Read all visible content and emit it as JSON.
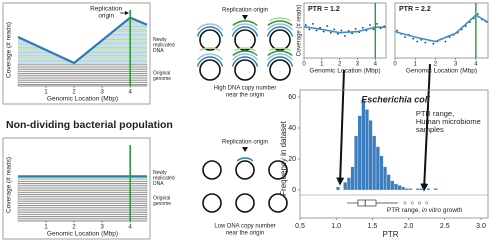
{
  "section_title": "Non-dividing bacterial population",
  "diagrams": [
    {
      "label": "Replication origin",
      "caption": [
        "High DNA copy number",
        "near the origin"
      ]
    },
    {
      "label": "Replication origin",
      "caption": [
        "Low DNA copy number",
        "near the origin"
      ]
    }
  ],
  "chart_data": [
    {
      "type": "line",
      "ylabel": "Coverage (# reads)",
      "xlabel": "Genomic Location (Mbp)",
      "xlim": [
        0,
        4.6
      ],
      "xticks": [
        1,
        2,
        3,
        4
      ],
      "ylim": [
        0,
        100
      ],
      "x": [
        0,
        2,
        4,
        4.6
      ],
      "series": [
        {
          "color": "#2a7ab8",
          "values": [
            68,
            32,
            95,
            85
          ]
        },
        {
          "color": "#9a9a9a",
          "values": [
            30,
            30,
            30,
            30
          ]
        }
      ],
      "origin_x": 4,
      "origin_color": "#2e9a3a",
      "origin_label": [
        "Replication",
        "origin"
      ],
      "new_label": [
        "Newly",
        "replicated",
        "DNA"
      ],
      "orig_label": [
        "Original",
        "genome"
      ]
    },
    {
      "type": "line",
      "ylabel": "Coverage (# reads)",
      "xlabel": "Genomic Location (Mbp)",
      "xlim": [
        0,
        4.6
      ],
      "xticks": [
        1,
        2,
        3,
        4
      ],
      "ylim": [
        0,
        100
      ],
      "x": [
        0,
        2,
        4,
        4.6
      ],
      "series": [
        {
          "color": "#2a7ab8",
          "values": [
            62,
            62,
            62,
            62
          ]
        },
        {
          "color": "#9a9a9a",
          "values": [
            58,
            58,
            58,
            58
          ]
        }
      ],
      "origin_x": 4,
      "origin_color": "#2e9a3a",
      "new_label": [
        "Newly",
        "replicated",
        "DNA"
      ],
      "orig_label": [
        "Original",
        "genome"
      ]
    },
    {
      "type": "scatter",
      "annotation": "PTR = 1.2",
      "ylabel": "Coverage (# reads)",
      "xlabel": "Genomic Location (Mbp)",
      "xlim": [
        0,
        4.6
      ],
      "xticks": [
        0,
        1,
        2,
        3,
        4
      ],
      "ylim": [
        0,
        100
      ],
      "origin_x": 4,
      "origin_color": "#2e9a3a",
      "color": "#1f3b63",
      "trend_color": "#3d8fd0",
      "x": [
        0.1,
        0.3,
        0.5,
        0.7,
        0.9,
        1.1,
        1.3,
        1.5,
        1.7,
        1.9,
        2.1,
        2.3,
        2.5,
        2.7,
        2.9,
        3.1,
        3.3,
        3.5,
        3.7,
        3.9,
        4.1,
        4.3,
        4.5
      ],
      "values": [
        60,
        52,
        62,
        50,
        55,
        48,
        58,
        46,
        52,
        44,
        50,
        40,
        49,
        45,
        53,
        47,
        55,
        50,
        60,
        52,
        62,
        54,
        58
      ],
      "trend": {
        "x": [
          0,
          1,
          2,
          3,
          4,
          4.6
        ],
        "values": [
          57,
          52,
          46,
          48,
          56,
          56
        ]
      }
    },
    {
      "type": "scatter",
      "annotation": "PTR = 2.2",
      "xlabel": "Genomic Location (Mbp)",
      "xlim": [
        0,
        4.6
      ],
      "xticks": [
        0,
        1,
        2,
        3,
        4
      ],
      "ylim": [
        0,
        100
      ],
      "origin_x": 4,
      "origin_color": "#2e9a3a",
      "color": "#1f3b63",
      "trend_color": "#3d8fd0",
      "x": [
        0.1,
        0.3,
        0.5,
        0.7,
        0.9,
        1.1,
        1.3,
        1.5,
        1.7,
        1.9,
        2.1,
        2.3,
        2.5,
        2.7,
        2.9,
        3.1,
        3.3,
        3.5,
        3.7,
        3.9,
        4.1,
        4.3,
        4.5
      ],
      "values": [
        50,
        44,
        38,
        42,
        35,
        30,
        33,
        28,
        32,
        26,
        30,
        34,
        30,
        38,
        42,
        46,
        52,
        58,
        65,
        72,
        80,
        70,
        66
      ],
      "trend": {
        "x": [
          0,
          1,
          2,
          3,
          4,
          4.6
        ],
        "values": [
          48,
          38,
          30,
          45,
          78,
          65
        ]
      }
    },
    {
      "type": "histogram",
      "title": "Escherichia coli",
      "ylabel": "Frequency in dataset",
      "xlabel": "PTR",
      "bins": [
        1.0,
        1.05,
        1.1,
        1.15,
        1.2,
        1.25,
        1.3,
        1.35,
        1.4,
        1.45,
        1.5,
        1.55,
        1.6,
        1.65,
        1.7,
        1.75,
        1.8,
        1.85,
        1.9,
        1.95,
        2.0,
        2.05,
        2.1,
        2.15,
        2.2,
        2.25,
        2.3,
        2.35,
        2.4
      ],
      "values": [
        2,
        0,
        5,
        8,
        15,
        35,
        48,
        58,
        52,
        45,
        35,
        28,
        22,
        15,
        10,
        6,
        4,
        3,
        2,
        1,
        1,
        0,
        1,
        1,
        0,
        1,
        0,
        1
      ],
      "color": "#3b7dbf",
      "xlim": [
        0.5,
        3.0
      ],
      "xticks": [
        0.5,
        {
          "value": 1,
          "label": "1.0"
        },
        1.5,
        {
          "value": 2,
          "label": "2.0"
        },
        2.5,
        {
          "value": 3,
          "label": "3.0"
        }
      ],
      "ylim": [
        0,
        60
      ],
      "yticks": [
        0,
        20,
        40,
        60
      ],
      "annotation": [
        "PTR range,",
        "Human microbiome",
        "samples"
      ],
      "boxplot": {
        "whisker_low": 1.15,
        "q1": 1.3,
        "median": 1.4,
        "q3": 1.55,
        "whisker_high": 1.85,
        "outliers": [
          1.95,
          2.05,
          2.15,
          2.25
        ]
      },
      "boxplot_label": {
        "text": "PTR range, ",
        "italic": "in vitro",
        "tail": " growth"
      }
    }
  ]
}
